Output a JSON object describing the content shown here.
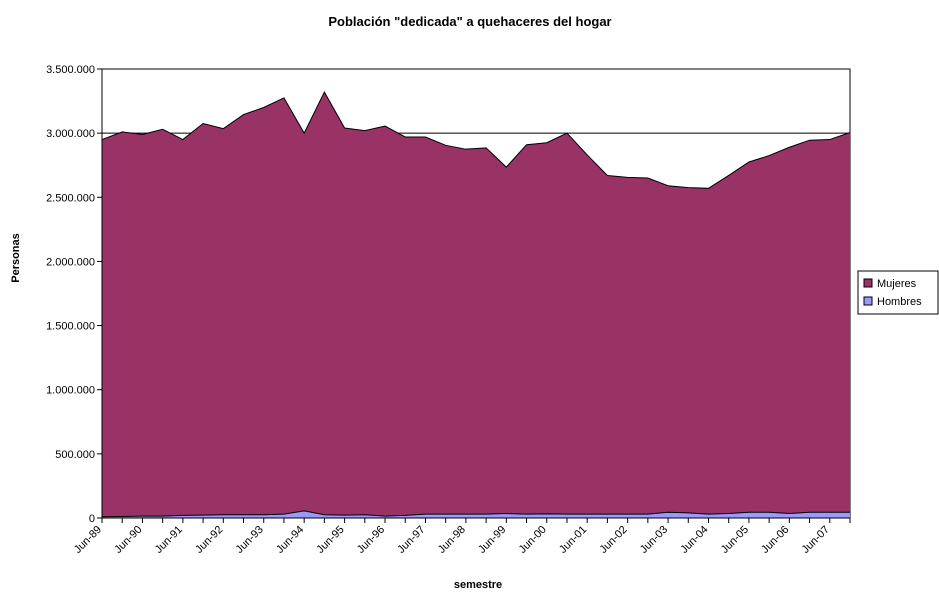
{
  "chart_data": {
    "type": "area",
    "stacked": true,
    "title": "Población \"dedicada\" a quehaceres del hogar",
    "xlabel": "semestre",
    "ylabel": "Personas",
    "ylim": [
      0,
      3500000
    ],
    "yticks": [
      0,
      500000,
      1000000,
      1500000,
      2000000,
      2500000,
      3000000,
      3500000
    ],
    "ytick_labels": [
      "0",
      "500.000",
      "1.000.000",
      "1.500.000",
      "2.000.000",
      "2.500.000",
      "3.000.000",
      "3.500.000"
    ],
    "xtick_labels": [
      "Jun-89",
      "Jun-90",
      "Jun-91",
      "Jun-92",
      "Jun-93",
      "Jun-94",
      "Jun-95",
      "Jun-96",
      "Jun-97",
      "Jun-98",
      "Jun-99",
      "Jun-00",
      "Jun-01",
      "Jun-02",
      "Jun-03",
      "Jun-04",
      "Jun-05",
      "Jun-06",
      "Jun-07"
    ],
    "grid": "horizontal",
    "legend_position": "right",
    "series": [
      {
        "name": "Mujeres",
        "color": "#993366",
        "total": [
          2950000,
          3010000,
          2990000,
          3030000,
          2950000,
          3075000,
          3035000,
          3145000,
          3200000,
          3275000,
          3000000,
          3320000,
          3040000,
          3020000,
          3055000,
          2970000,
          2970000,
          2905000,
          2875000,
          2885000,
          2735000,
          2910000,
          2925000,
          3000000,
          2830000,
          2670000,
          2655000,
          2650000,
          2590000,
          2575000,
          2570000,
          2670000,
          2775000,
          2825000,
          2890000,
          2945000,
          2950000,
          3005000
        ]
      },
      {
        "name": "Hombres",
        "color": "#9999ff",
        "values": [
          10000,
          12000,
          15000,
          15000,
          20000,
          22000,
          25000,
          25000,
          25000,
          30000,
          55000,
          25000,
          22000,
          25000,
          15000,
          20000,
          30000,
          30000,
          30000,
          30000,
          35000,
          30000,
          32000,
          30000,
          30000,
          30000,
          30000,
          30000,
          45000,
          40000,
          30000,
          35000,
          45000,
          45000,
          35000,
          45000,
          45000,
          45000
        ]
      }
    ]
  }
}
